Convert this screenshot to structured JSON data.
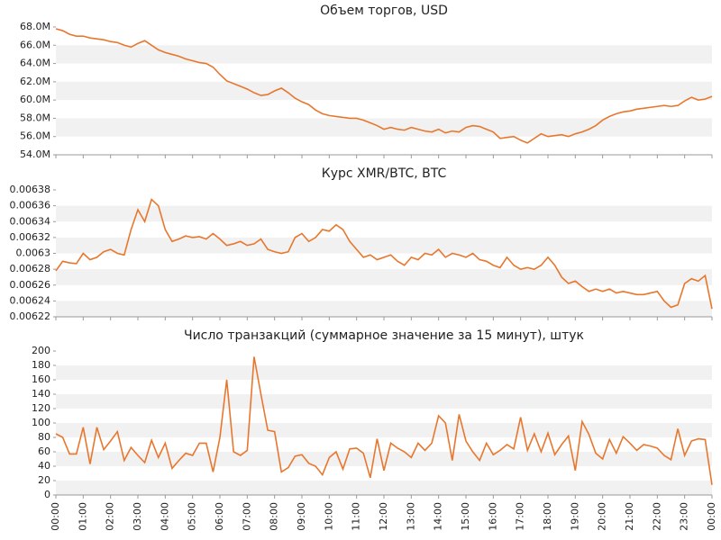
{
  "chart_data": [
    {
      "type": "line",
      "title": "Объем торгов, USD",
      "color": "#e8772e",
      "grid": true,
      "ylim": [
        54000000,
        68000000
      ],
      "yticks": [
        {
          "value": 54000000,
          "label": "54.0M"
        },
        {
          "value": 56000000,
          "label": "56.0M"
        },
        {
          "value": 58000000,
          "label": "58.0M"
        },
        {
          "value": 60000000,
          "label": "60.0M"
        },
        {
          "value": 62000000,
          "label": "62.0M"
        },
        {
          "value": 64000000,
          "label": "64.0M"
        },
        {
          "value": 66000000,
          "label": "66.0M"
        },
        {
          "value": 68000000,
          "label": "68.0M"
        }
      ],
      "values": [
        67800000,
        67600000,
        67200000,
        67000000,
        67000000,
        66800000,
        66700000,
        66600000,
        66400000,
        66300000,
        66000000,
        65800000,
        66200000,
        66500000,
        66000000,
        65500000,
        65200000,
        65000000,
        64800000,
        64500000,
        64300000,
        64100000,
        64000000,
        63600000,
        62800000,
        62100000,
        61800000,
        61500000,
        61200000,
        60800000,
        60500000,
        60600000,
        61000000,
        61300000,
        60800000,
        60200000,
        59800000,
        59500000,
        58900000,
        58500000,
        58300000,
        58200000,
        58100000,
        58000000,
        58000000,
        57800000,
        57500000,
        57200000,
        56800000,
        57000000,
        56800000,
        56700000,
        57000000,
        56800000,
        56600000,
        56500000,
        56800000,
        56400000,
        56600000,
        56500000,
        57000000,
        57200000,
        57100000,
        56800000,
        56500000,
        55800000,
        55900000,
        56000000,
        55600000,
        55300000,
        55800000,
        56300000,
        56000000,
        56100000,
        56200000,
        56000000,
        56300000,
        56500000,
        56800000,
        57200000,
        57800000,
        58200000,
        58500000,
        58700000,
        58800000,
        59000000,
        59100000,
        59200000,
        59300000,
        59400000,
        59300000,
        59400000,
        59900000,
        60300000,
        60000000,
        60100000,
        60400000
      ]
    },
    {
      "type": "line",
      "title": "Курс XMR/BTC, BTC",
      "color": "#e8772e",
      "grid": true,
      "ylim": [
        0.00622,
        0.00638
      ],
      "yticks": [
        0.00622,
        0.00624,
        0.00626,
        0.00628,
        0.0063,
        0.00632,
        0.00634,
        0.00636,
        0.00638
      ],
      "values": [
        0.006278,
        0.00629,
        0.006288,
        0.006287,
        0.0063,
        0.006292,
        0.006295,
        0.006302,
        0.006305,
        0.0063,
        0.006298,
        0.00633,
        0.006355,
        0.00634,
        0.006368,
        0.00636,
        0.00633,
        0.006315,
        0.006318,
        0.006322,
        0.00632,
        0.006321,
        0.006318,
        0.006325,
        0.006318,
        0.00631,
        0.006312,
        0.006315,
        0.00631,
        0.006312,
        0.006318,
        0.006305,
        0.006302,
        0.0063,
        0.006302,
        0.00632,
        0.006325,
        0.006315,
        0.00632,
        0.00633,
        0.006328,
        0.006336,
        0.00633,
        0.006315,
        0.006305,
        0.006295,
        0.006298,
        0.006292,
        0.006295,
        0.006298,
        0.00629,
        0.006285,
        0.006295,
        0.006292,
        0.0063,
        0.006298,
        0.006305,
        0.006295,
        0.0063,
        0.006298,
        0.006295,
        0.0063,
        0.006292,
        0.00629,
        0.006285,
        0.006282,
        0.006295,
        0.006285,
        0.00628,
        0.006282,
        0.00628,
        0.006285,
        0.006295,
        0.006285,
        0.00627,
        0.006262,
        0.006265,
        0.006258,
        0.006252,
        0.006255,
        0.006252,
        0.006255,
        0.00625,
        0.006252,
        0.00625,
        0.006248,
        0.006248,
        0.00625,
        0.006252,
        0.00624,
        0.006232,
        0.006235,
        0.006262,
        0.006268,
        0.006265,
        0.006272,
        0.00623
      ]
    },
    {
      "type": "line",
      "title": "Число транзакций (суммарное значение за 15 минут), штук",
      "color": "#e8772e",
      "grid": true,
      "ylim": [
        0,
        200
      ],
      "yticks": [
        0,
        20,
        40,
        60,
        80,
        100,
        120,
        140,
        160,
        180,
        200
      ],
      "categories": [
        "00:00",
        null,
        null,
        null,
        "01:00",
        null,
        null,
        null,
        "02:00",
        null,
        null,
        null,
        "03:00",
        null,
        null,
        null,
        "04:00",
        null,
        null,
        null,
        "05:00",
        null,
        null,
        null,
        "06:00",
        null,
        null,
        null,
        "07:00",
        null,
        null,
        null,
        "08:00",
        null,
        null,
        null,
        "09:00",
        null,
        null,
        null,
        "10:00",
        null,
        null,
        null,
        "11:00",
        null,
        null,
        null,
        "12:00",
        null,
        null,
        null,
        "13:00",
        null,
        null,
        null,
        "14:00",
        null,
        null,
        null,
        "15:00",
        null,
        null,
        null,
        "16:00",
        null,
        null,
        null,
        "17:00",
        null,
        null,
        null,
        "18:00",
        null,
        null,
        null,
        "19:00",
        null,
        null,
        null,
        "20:00",
        null,
        null,
        null,
        "21:00",
        null,
        null,
        null,
        "22:00",
        null,
        null,
        null,
        "23:00",
        null,
        null,
        null,
        "00:00"
      ],
      "values": [
        85,
        80,
        57,
        57,
        94,
        43,
        94,
        63,
        75,
        88,
        48,
        66,
        55,
        45,
        76,
        52,
        72,
        37,
        48,
        58,
        55,
        72,
        72,
        32,
        80,
        160,
        60,
        55,
        62,
        192,
        140,
        90,
        88,
        32,
        38,
        54,
        56,
        44,
        40,
        28,
        52,
        60,
        36,
        64,
        65,
        58,
        24,
        78,
        34,
        72,
        65,
        60,
        52,
        72,
        62,
        72,
        110,
        100,
        48,
        112,
        75,
        60,
        48,
        72,
        56,
        62,
        70,
        64,
        108,
        62,
        85,
        60,
        86,
        56,
        70,
        82,
        34,
        102,
        84,
        58,
        50,
        77,
        58,
        81,
        72,
        62,
        70,
        68,
        65,
        55,
        49,
        92,
        55,
        75,
        78,
        77,
        14
      ]
    }
  ]
}
